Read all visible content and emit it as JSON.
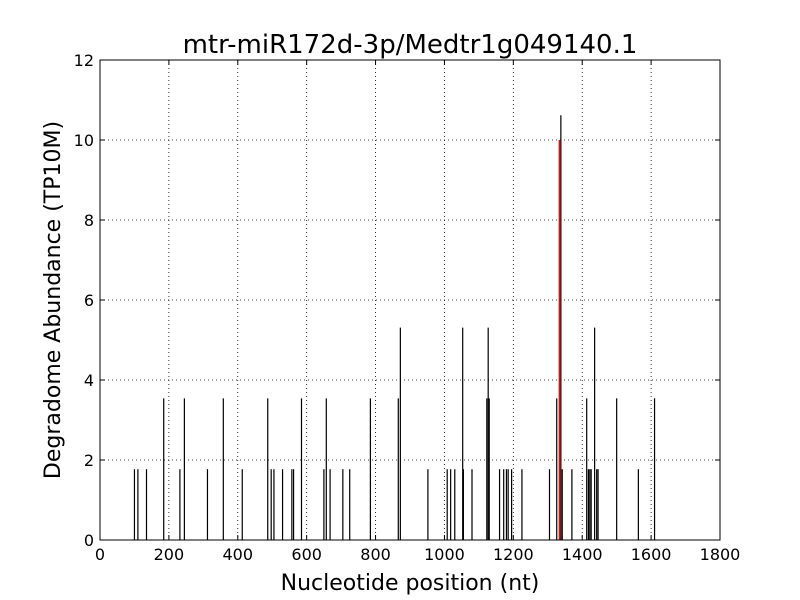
{
  "chart_data": {
    "type": "bar",
    "title": "mtr-miR172d-3p/Medtr1g049140.1",
    "xlabel": "Nucleotide position (nt)",
    "ylabel": "Degradome Abundance (TP10M)",
    "xlim": [
      0,
      1800
    ],
    "ylim": [
      0,
      12
    ],
    "xticks": [
      0,
      200,
      400,
      600,
      800,
      1000,
      1200,
      1400,
      1600,
      1800
    ],
    "yticks": [
      0,
      2,
      4,
      6,
      8,
      10,
      12
    ],
    "grid": true,
    "series": [
      {
        "color": "#000000",
        "points": [
          [
            100,
            1.77
          ],
          [
            110,
            1.77
          ],
          [
            135,
            1.77
          ],
          [
            185,
            3.54
          ],
          [
            232,
            1.77
          ],
          [
            245,
            3.54
          ],
          [
            312,
            1.77
          ],
          [
            358,
            3.54
          ],
          [
            413,
            1.77
          ],
          [
            487,
            3.54
          ],
          [
            497,
            1.77
          ],
          [
            505,
            1.77
          ],
          [
            530,
            1.77
          ],
          [
            557,
            1.77
          ],
          [
            562,
            1.77
          ],
          [
            585,
            3.54
          ],
          [
            650,
            1.77
          ],
          [
            657,
            3.54
          ],
          [
            668,
            1.77
          ],
          [
            705,
            1.77
          ],
          [
            725,
            1.77
          ],
          [
            785,
            3.54
          ],
          [
            866,
            3.54
          ],
          [
            872,
            5.31
          ],
          [
            952,
            1.77
          ],
          [
            1008,
            1.77
          ],
          [
            1018,
            1.77
          ],
          [
            1030,
            1.77
          ],
          [
            1053,
            5.31
          ],
          [
            1055,
            1.77
          ],
          [
            1080,
            1.77
          ],
          [
            1123,
            3.54
          ],
          [
            1127,
            5.31
          ],
          [
            1130,
            3.54
          ],
          [
            1160,
            1.77
          ],
          [
            1172,
            1.77
          ],
          [
            1180,
            1.77
          ],
          [
            1185,
            1.77
          ],
          [
            1195,
            1.77
          ],
          [
            1225,
            1.77
          ],
          [
            1305,
            1.77
          ],
          [
            1326,
            3.54
          ],
          [
            1338,
            10.62
          ],
          [
            1342,
            1.77
          ],
          [
            1370,
            1.77
          ],
          [
            1413,
            3.54
          ],
          [
            1418,
            1.77
          ],
          [
            1422,
            1.77
          ],
          [
            1426,
            1.77
          ],
          [
            1436,
            5.31
          ],
          [
            1442,
            1.77
          ],
          [
            1446,
            1.77
          ],
          [
            1500,
            3.54
          ],
          [
            1563,
            1.77
          ],
          [
            1610,
            3.54
          ]
        ]
      },
      {
        "color": "#ff0000",
        "points": [
          [
            1334,
            10.0
          ]
        ]
      }
    ]
  }
}
